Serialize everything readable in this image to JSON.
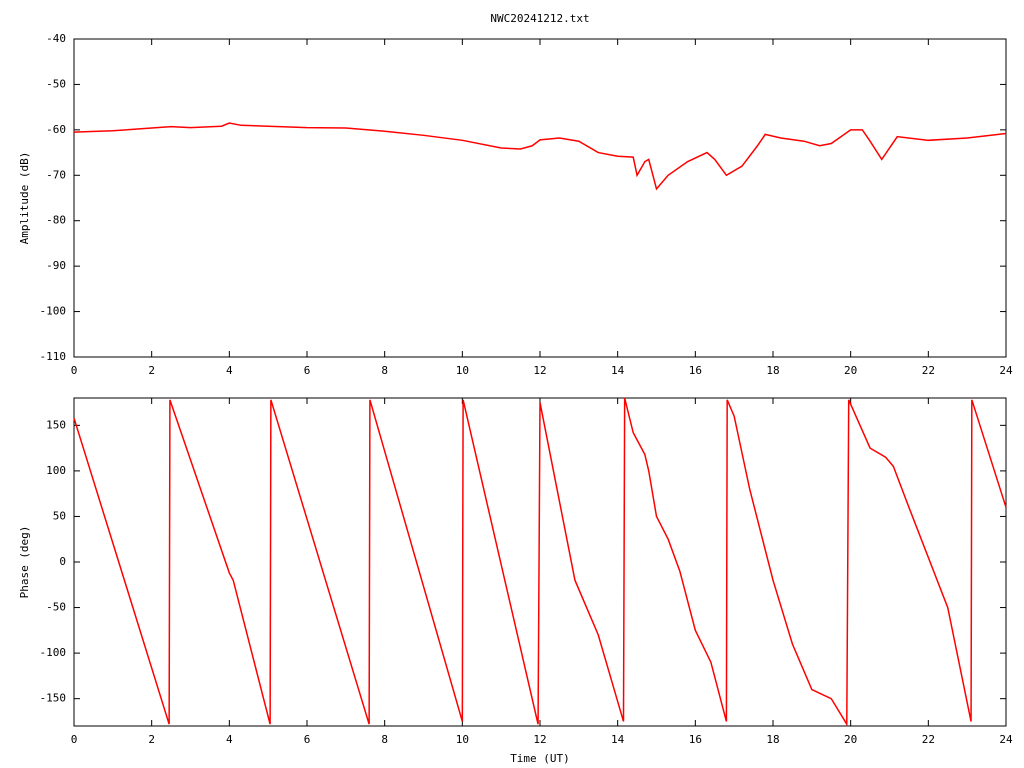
{
  "chart_data": [
    {
      "type": "line",
      "title": "NWC20241212.txt",
      "y_label": "Amplitude (dB)",
      "x": [
        0,
        1,
        2,
        2.5,
        3,
        3.8,
        4,
        4.3,
        5,
        6,
        7,
        8,
        9,
        10,
        11,
        11.5,
        11.8,
        12,
        12.5,
        13,
        13.5,
        14,
        14.4,
        14.5,
        14.7,
        14.8,
        15,
        15.3,
        15.8,
        16.3,
        16.5,
        16.8,
        17.2,
        17.6,
        17.8,
        18.2,
        18.8,
        19.2,
        19.5,
        20,
        20.3,
        20.5,
        20.8,
        21,
        21.2,
        22,
        23,
        24
      ],
      "series": [
        {
          "color": "#ff0000",
          "values": [
            -60.5,
            -60.2,
            -59.6,
            -59.3,
            -59.5,
            -59.2,
            -58.5,
            -59.0,
            -59.2,
            -59.5,
            -59.6,
            -60.3,
            -61.2,
            -62.3,
            -64,
            -64.2,
            -63.5,
            -62.2,
            -61.8,
            -62.5,
            -65,
            -65.8,
            -66,
            -70,
            -67,
            -66.5,
            -73,
            -70,
            -67,
            -65,
            -66.5,
            -70,
            -68,
            -63.5,
            -61,
            -61.8,
            -62.5,
            -63.5,
            -63,
            -60,
            -60,
            -62.5,
            -66.5,
            -64,
            -61.5,
            -62.3,
            -61.8,
            -60.8
          ]
        }
      ],
      "xlim": [
        0,
        24
      ],
      "xticks": [
        0,
        2,
        4,
        6,
        8,
        10,
        12,
        14,
        16,
        18,
        20,
        22,
        24
      ],
      "ylim": [
        -110,
        -40
      ],
      "yticks": [
        -40,
        -50,
        -60,
        -70,
        -80,
        -90,
        -100,
        -110
      ]
    },
    {
      "type": "line",
      "x_label": "Time (UT)",
      "y_label": "Phase (deg)",
      "x": [
        0,
        2.45,
        2.47,
        4,
        4.1,
        5.05,
        5.07,
        7.6,
        7.62,
        10.0,
        10.02,
        11.95,
        12.0,
        12.9,
        13.5,
        14.15,
        14.18,
        14.4,
        14.7,
        14.8,
        15.0,
        15.3,
        15.6,
        16.0,
        16.4,
        16.8,
        16.82,
        17.0,
        17.4,
        18.0,
        18.5,
        19.0,
        19.5,
        19.9,
        19.95,
        20.5,
        20.9,
        21.1,
        21.5,
        22.5,
        23.1,
        23.12,
        24
      ],
      "series": [
        {
          "color": "#ff0000",
          "values": [
            158,
            -178,
            178,
            -12,
            -20,
            -178,
            178,
            -178,
            178,
            -175,
            178,
            -178,
            175,
            -20,
            -80,
            -175,
            180,
            142,
            118,
            100,
            50,
            25,
            -10,
            -75,
            -110,
            -175,
            178,
            160,
            80,
            -20,
            -90,
            -140,
            -150,
            -178,
            178,
            125,
            115,
            105,
            60,
            -50,
            -175,
            178,
            60
          ]
        }
      ],
      "xlim": [
        0,
        24
      ],
      "xticks": [
        0,
        2,
        4,
        6,
        8,
        10,
        12,
        14,
        16,
        18,
        20,
        22,
        24
      ],
      "ylim": [
        -180,
        180
      ],
      "yticks": [
        150,
        100,
        50,
        0,
        -50,
        -100,
        -150
      ]
    }
  ]
}
